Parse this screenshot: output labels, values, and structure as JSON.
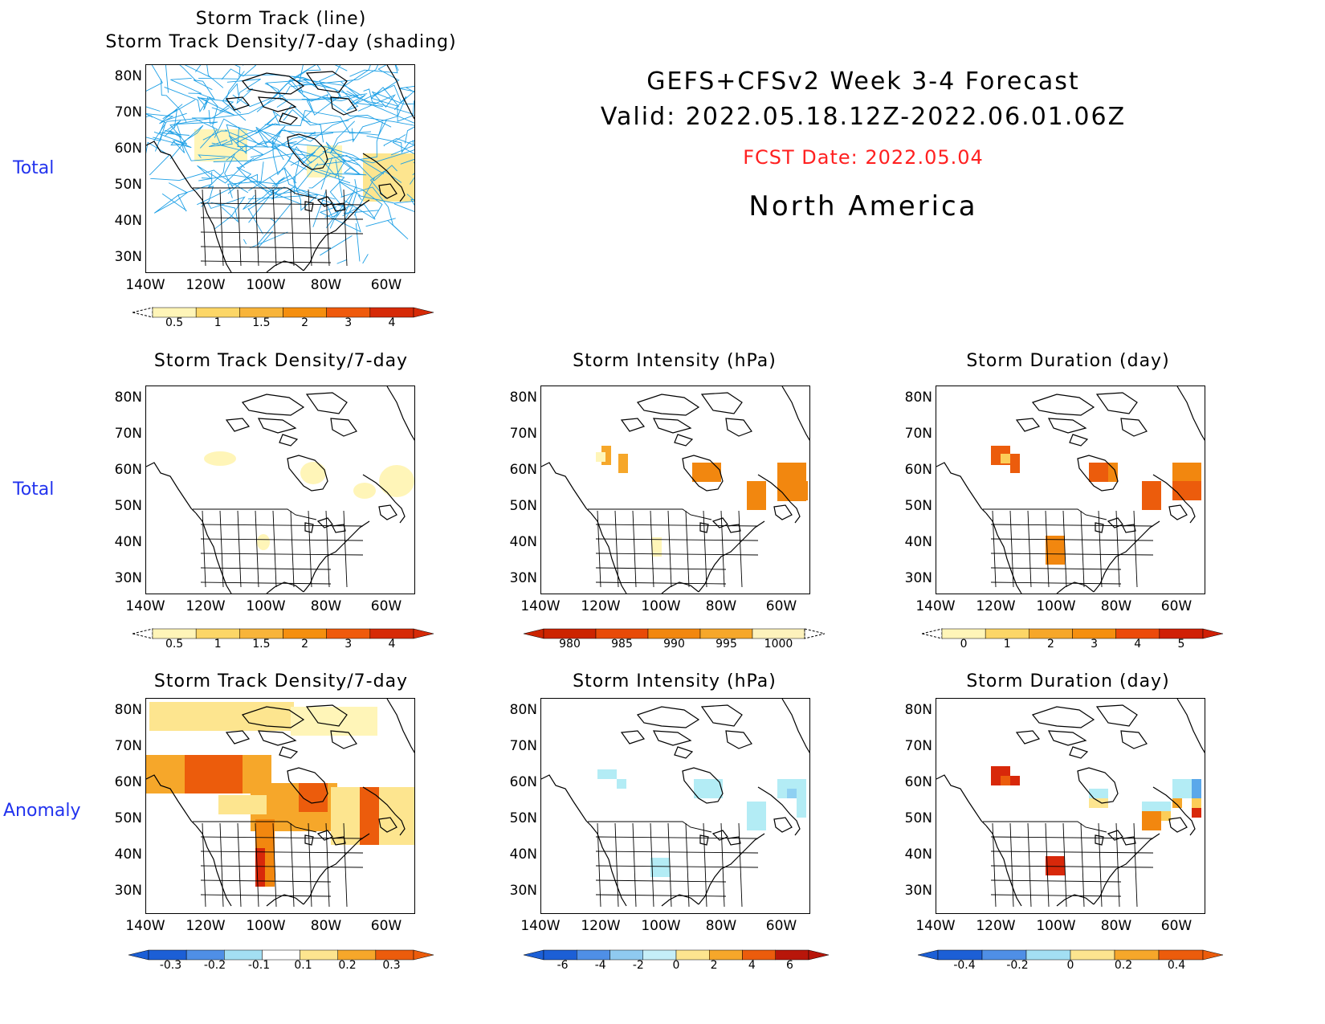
{
  "header": {
    "title": "GEFS+CFSv2 Week 3-4 Forecast",
    "valid": "Valid: 2022.05.18.12Z-2022.06.01.06Z",
    "fcst_date": "FCST Date: 2022.05.04",
    "region": "North America",
    "fcst_color": "#ff2020"
  },
  "row_labels": {
    "row1": "Total",
    "row2": "Total",
    "row3": "Anomaly"
  },
  "panels": {
    "p1": {
      "title1": "Storm Track (line)",
      "title2": "Storm Track Density/7-day (shading)"
    },
    "p2": {
      "title": "Storm Track Density/7-day"
    },
    "p3": {
      "title": "Storm Intensity (hPa)"
    },
    "p4": {
      "title": "Storm Duration (day)"
    },
    "p5": {
      "title": "Storm Track Density/7-day"
    },
    "p6": {
      "title": "Storm Intensity (hPa)"
    },
    "p7": {
      "title": "Storm Duration (day)"
    }
  },
  "axes": {
    "lat_labels": [
      "80N",
      "70N",
      "60N",
      "50N",
      "40N",
      "30N"
    ],
    "lon_labels": [
      "140W",
      "120W",
      "100W",
      "80W",
      "60W"
    ]
  },
  "colorbars": {
    "density": {
      "labels": [
        "0.5",
        "1",
        "1.5",
        "2",
        "3",
        "4"
      ],
      "colors": [
        "#fff5b8",
        "#fcd667",
        "#f8b43a",
        "#f58f0f",
        "#ef5a0c",
        "#d62a07"
      ]
    },
    "intensity": {
      "labels": [
        "980",
        "985",
        "990",
        "995",
        "1000"
      ],
      "colors": [
        "#cc2400",
        "#e84a08",
        "#f2870f",
        "#f6a72a",
        "#fdf2bc"
      ]
    },
    "duration": {
      "labels": [
        "0",
        "1",
        "2",
        "3",
        "4",
        "5"
      ],
      "colors": [
        "#fff5b8",
        "#fcd667",
        "#f6a72a",
        "#f58f0f",
        "#ec4a0a",
        "#d02006"
      ]
    },
    "anom_density": {
      "labels": [
        "-0.3",
        "-0.2",
        "-0.1",
        "0.1",
        "0.2",
        "0.3"
      ]
    },
    "anom_intensity": {
      "labels": [
        "-6",
        "-4",
        "-2",
        "0",
        "2",
        "4",
        "6"
      ]
    },
    "anom_duration": {
      "labels": [
        "-0.4",
        "-0.2",
        "0",
        "0.2",
        "0.4"
      ]
    }
  },
  "colors": {
    "track_line": "#1ea0e6",
    "row_label": "#2233ee",
    "warm": [
      "#fff5b8",
      "#fde58f",
      "#fccd58",
      "#f6a72a",
      "#f2870f",
      "#ec5c0c",
      "#d8280a"
    ],
    "cool": [
      "#b3ecf5",
      "#8fd0f2",
      "#5aa8ea",
      "#2f7ee0"
    ]
  }
}
